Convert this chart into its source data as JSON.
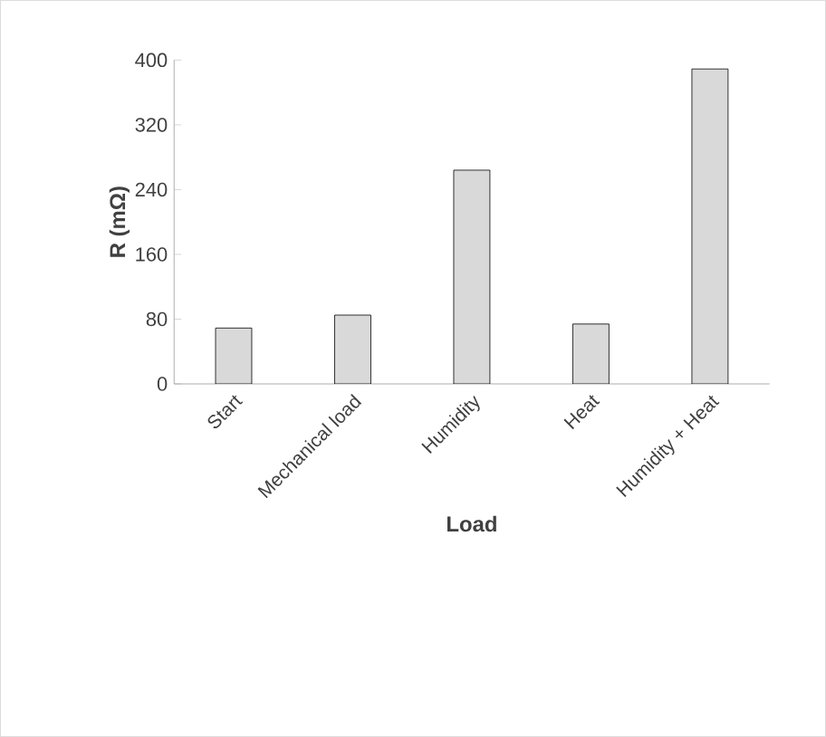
{
  "chart_data": {
    "type": "bar",
    "xlabel": "Load",
    "ylabel": "R (mΩ)",
    "categories": [
      "Start",
      "Mechanical load",
      "Humidity",
      "Heat",
      "Humidity + Heat"
    ],
    "values": [
      69,
      85,
      264,
      74,
      389
    ],
    "color": "#d9d9d9",
    "ylim": [
      0,
      400
    ],
    "yticks": [
      0,
      80,
      160,
      240,
      320,
      400
    ]
  }
}
